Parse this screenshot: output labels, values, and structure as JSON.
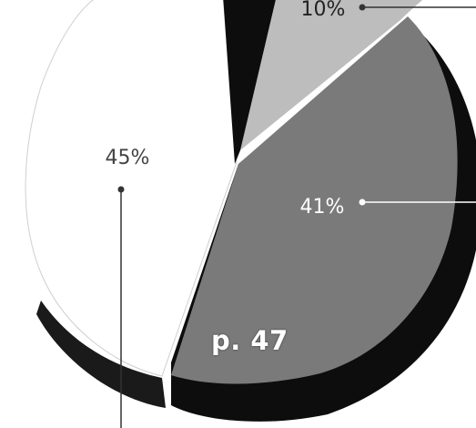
{
  "chart_data": {
    "type": "pie",
    "title": "",
    "slices": [
      {
        "label": "10%",
        "value": 10,
        "color": "#bdbdbd"
      },
      {
        "label": "41%",
        "value": 41,
        "color": "#7a7a7a"
      },
      {
        "label": "45%",
        "value": 45,
        "color": "#ffffff"
      },
      {
        "label": "",
        "value": 4,
        "color": "#0d0d0d"
      }
    ],
    "style": "3d-exploded",
    "legend": "none"
  },
  "page_label": "p. 47"
}
